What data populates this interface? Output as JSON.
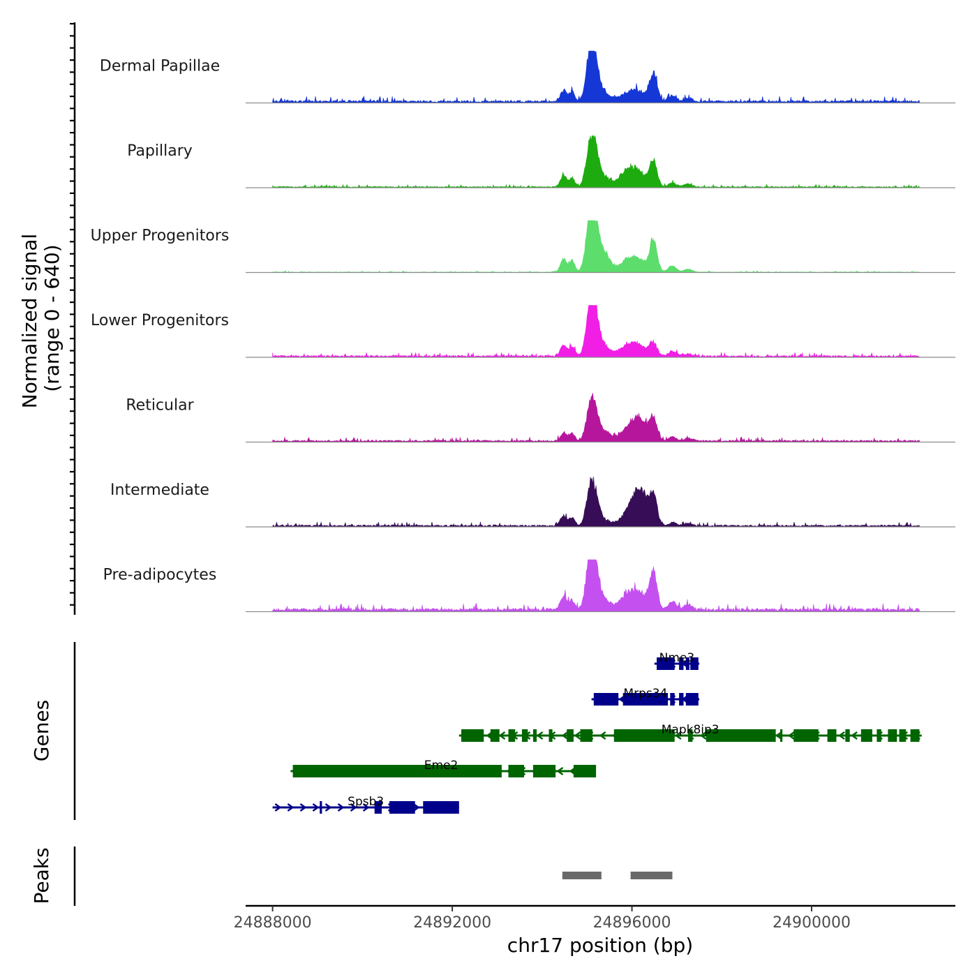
{
  "chart_data": {
    "type": "area",
    "y_axis_title_line1": "Normalized signal",
    "y_axis_title_line2": "(range 0 - 640)",
    "y_range": [
      0,
      640
    ],
    "x_axis_title": "chr17 position (bp)",
    "x_range": [
      24887400,
      24903200
    ],
    "x_ticks": [
      24888000,
      24892000,
      24896000,
      24900000
    ],
    "x_tick_labels": [
      "24888000",
      "24892000",
      "24896000",
      "24900000"
    ],
    "genes_label": "Genes",
    "peaks_label": "Peaks",
    "signal_peaks": [
      {
        "position": 24894480,
        "width": 70
      },
      {
        "position": 24894670,
        "width": 60
      },
      {
        "position": 24895060,
        "width": 90
      },
      {
        "position": 24895180,
        "width": 90
      },
      {
        "position": 24895380,
        "width": 130
      },
      {
        "position": 24895900,
        "width": 180
      },
      {
        "position": 24896180,
        "width": 170
      },
      {
        "position": 24896480,
        "width": 80
      },
      {
        "position": 24896900,
        "width": 90
      },
      {
        "position": 24897250,
        "width": 90
      }
    ],
    "series": [
      {
        "name": "Dermal Papillae",
        "color": "#1537d6",
        "baseline": 4,
        "peak_heights": [
          22,
          18,
          70,
          62,
          18,
          14,
          16,
          52,
          10,
          6
        ]
      },
      {
        "name": "Papillary",
        "color": "#1eab10",
        "baseline": 2,
        "peak_heights": [
          22,
          18,
          68,
          60,
          18,
          30,
          22,
          50,
          8,
          6
        ]
      },
      {
        "name": "Upper Progenitors",
        "color": "#5cdd6c",
        "baseline": 1,
        "peak_heights": [
          26,
          22,
          92,
          70,
          36,
          22,
          20,
          60,
          12,
          6
        ]
      },
      {
        "name": "Lower Progenitors",
        "color": "#f11ee6",
        "baseline": 3,
        "peak_heights": [
          22,
          18,
          80,
          72,
          20,
          20,
          16,
          24,
          10,
          5
        ]
      },
      {
        "name": "Reticular",
        "color": "#b6169c",
        "baseline": 3,
        "peak_heights": [
          16,
          14,
          52,
          48,
          18,
          20,
          40,
          38,
          8,
          5
        ]
      },
      {
        "name": "Intermediate",
        "color": "#360d56",
        "baseline": 3,
        "peak_heights": [
          20,
          16,
          58,
          50,
          10,
          18,
          68,
          52,
          6,
          4
        ]
      },
      {
        "name": "Pre-adipocytes",
        "color": "#c450ef",
        "baseline": 5,
        "peak_heights": [
          26,
          18,
          88,
          70,
          18,
          28,
          24,
          70,
          16,
          10
        ]
      }
    ],
    "genes": [
      {
        "name": "Nme3",
        "row": 0,
        "strand": "-",
        "color": "#00008b",
        "start": 24896500,
        "end": 24897500,
        "exons": [
          [
            24896550,
            24896950
          ],
          [
            24897050,
            24897150
          ],
          [
            24897200,
            24897280
          ],
          [
            24897300,
            24897480
          ]
        ]
      },
      {
        "name": "Mrps34",
        "row": 1,
        "strand": "-",
        "color": "#00008b",
        "start": 24895100,
        "end": 24897500,
        "exons": [
          [
            24895150,
            24895700
          ],
          [
            24895800,
            24896800
          ],
          [
            24896850,
            24896950
          ],
          [
            24897050,
            24897150
          ],
          [
            24897200,
            24897480
          ]
        ]
      },
      {
        "name": "Mapk8ip3",
        "row": 2,
        "strand": "-",
        "color": "#006400",
        "start": 24892150,
        "end": 24902450,
        "exons": [
          [
            24892200,
            24892700
          ],
          [
            24892850,
            24893050
          ],
          [
            24893250,
            24893400
          ],
          [
            24893550,
            24893680
          ],
          [
            24893800,
            24893880
          ],
          [
            24894150,
            24894230
          ],
          [
            24894550,
            24894700
          ],
          [
            24894850,
            24895120
          ],
          [
            24895600,
            24896950
          ],
          [
            24897250,
            24897350
          ],
          [
            24897650,
            24899200
          ],
          [
            24899300,
            24899350
          ],
          [
            24899600,
            24900150
          ],
          [
            24900350,
            24900550
          ],
          [
            24900750,
            24900850
          ],
          [
            24901100,
            24901350
          ],
          [
            24901450,
            24901550
          ],
          [
            24901700,
            24901900
          ],
          [
            24901950,
            24902100
          ],
          [
            24902200,
            24902400
          ]
        ]
      },
      {
        "name": "Eme2",
        "row": 3,
        "strand": "-",
        "color": "#006400",
        "start": 24888400,
        "end": 24895100,
        "exons": [
          [
            24888450,
            24893100
          ],
          [
            24893250,
            24893600
          ],
          [
            24893800,
            24894300
          ],
          [
            24894700,
            24895200
          ]
        ]
      },
      {
        "name": "Spsb3",
        "row": 4,
        "strand": "+",
        "color": "#00008b",
        "start": 24888000,
        "end": 24892150,
        "exons": [
          [
            24889050,
            24889100
          ],
          [
            24890270,
            24890430
          ],
          [
            24890600,
            24891170
          ],
          [
            24891350,
            24892150
          ]
        ]
      }
    ],
    "peak_regions": [
      [
        24894450,
        24895320
      ],
      [
        24895970,
        24896900
      ]
    ]
  }
}
